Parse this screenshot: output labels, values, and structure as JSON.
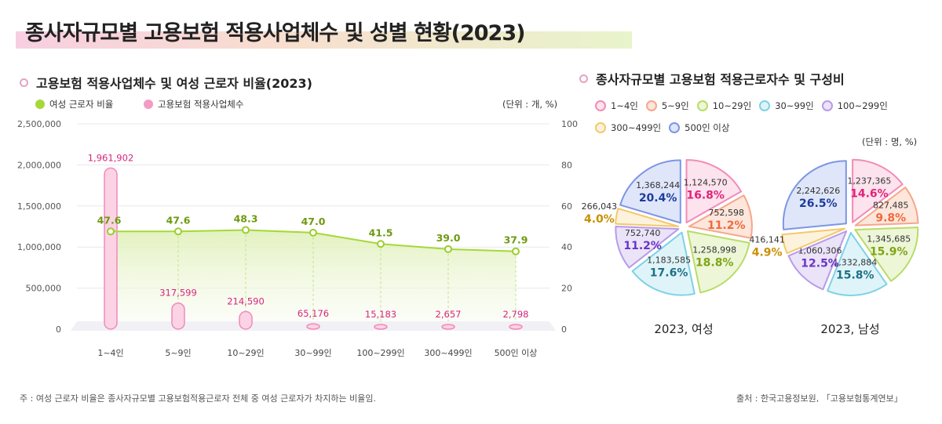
{
  "title": "종사자규모별 고용보험 적용사업체수 및 성별 현황(2023)",
  "left": {
    "section_title": "고용보험 적용사업체수 및 여성 근로자 비율(2023)",
    "legend_line": "여성 근로자 비율",
    "legend_bar": "고용보험 적용사업체수",
    "unit": "(단위 : 개, %)"
  },
  "right": {
    "section_title": "종사자규모별 고용보험 적용근로자수 및 구성비",
    "unit": "(단위 : 명, %)"
  },
  "footnote": "주 : 여성 근로자 비율은 종사자규모별 고용보험적용근로자 전체 중 여성 근로자가 차지하는 비율임.",
  "source": "출처 : 한국고용정보원, 「고용보험통계연보」",
  "colors": {
    "bar": "#f39bc4",
    "line": "#a6d83a",
    "pie_fill": [
      "#fde3ee",
      "#fde6dc",
      "#eef6d8",
      "#dff4f9",
      "#ebe3f8",
      "#fdf3dc",
      "#dfe6fa"
    ],
    "pie_stroke": [
      "#f48bb6",
      "#f7a68a",
      "#b9dc68",
      "#7ed2e4",
      "#b79be8",
      "#f4c86c",
      "#7d96e3"
    ],
    "pie_pct": [
      "#e0237a",
      "#ee6a3b",
      "#7ea516",
      "#1f6f86",
      "#6a35c4",
      "#c98f00",
      "#1d3c9c"
    ]
  },
  "chart_data": [
    {
      "type": "bar",
      "categories": [
        "1~4인",
        "5~9인",
        "10~29인",
        "30~99인",
        "100~299인",
        "300~499인",
        "500인 이상"
      ],
      "series": [
        {
          "name": "고용보험 적용사업체수",
          "axis": "left",
          "values": [
            1961902,
            317599,
            214590,
            65176,
            15183,
            2657,
            2798
          ],
          "labels": [
            "1,961,902",
            "317,599",
            "214,590",
            "65,176",
            "15,183",
            "2,657",
            "2,798"
          ]
        },
        {
          "name": "여성 근로자 비율",
          "axis": "right",
          "type": "line",
          "values": [
            47.6,
            47.6,
            48.3,
            47.0,
            41.5,
            39.0,
            37.9
          ],
          "labels": [
            "47.6",
            "47.6",
            "48.3",
            "47.0",
            "41.5",
            "39.0",
            "37.9"
          ]
        }
      ],
      "ylim": [
        0,
        2500000
      ],
      "y2lim": [
        0,
        100
      ],
      "y_ticks": [
        "2,500,000",
        "2,000,000",
        "1,500,000",
        "1,000,000",
        "500,000",
        "0"
      ],
      "y2_ticks": [
        "100",
        "80",
        "60",
        "40",
        "20",
        "0"
      ]
    },
    {
      "type": "pie",
      "title": "2023, 여성",
      "categories": [
        "1~4인",
        "5~9인",
        "10~29인",
        "30~99인",
        "100~299인",
        "300~499인",
        "500인 이상"
      ],
      "values": [
        1124570,
        752598,
        1258998,
        1183585,
        752740,
        266043,
        1368244
      ],
      "value_labels": [
        "1,124,570",
        "752,598",
        "1,258,998",
        "1,183,585",
        "752,740",
        "266,043",
        "1,368,244"
      ],
      "percents": [
        "16.8%",
        "11.2%",
        "18.8%",
        "17.6%",
        "11.2%",
        "4.0%",
        "20.4%"
      ]
    },
    {
      "type": "pie",
      "title": "2023, 남성",
      "categories": [
        "1~4인",
        "5~9인",
        "10~29인",
        "30~99인",
        "100~299인",
        "300~499인",
        "500인 이상"
      ],
      "values": [
        1237365,
        827485,
        1345685,
        1332884,
        1060306,
        416141,
        2242626
      ],
      "value_labels": [
        "1,237,365",
        "827,485",
        "1,345,685",
        "1,332,884",
        "1,060,306",
        "416,141",
        "2,242,626"
      ],
      "percents": [
        "14.6%",
        "9.8%",
        "15.9%",
        "15.8%",
        "12.5%",
        "4.9%",
        "26.5%"
      ]
    }
  ]
}
